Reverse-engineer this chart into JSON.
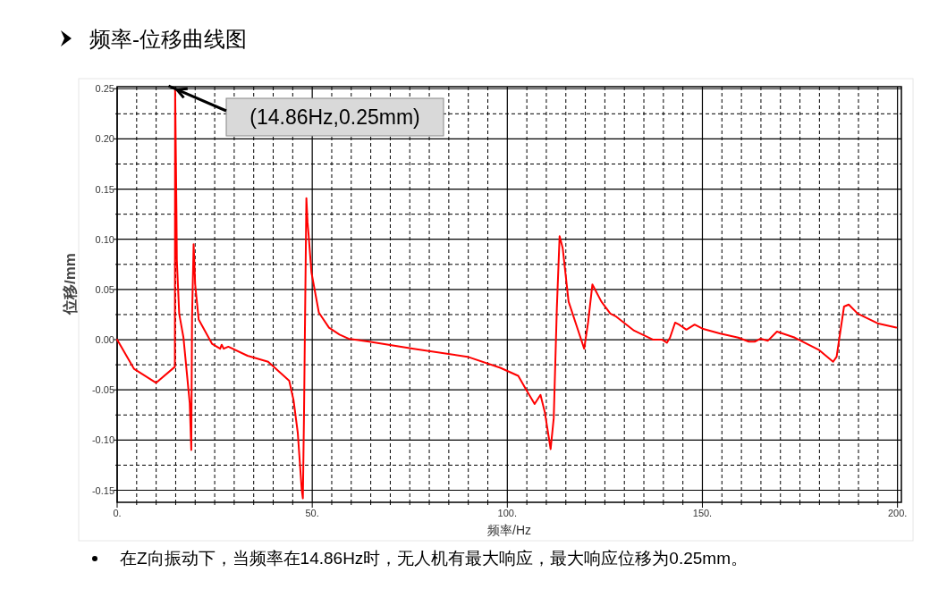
{
  "chart_data": {
    "type": "line",
    "title": "频率-位移曲线图",
    "xlabel": "频率/Hz",
    "ylabel": "位移/mm",
    "x": [
      0,
      4.3,
      10.0,
      14.8,
      14.86,
      15.2,
      15.3,
      15.9,
      17.0,
      18.6,
      19.0,
      19.2,
      19.6,
      20.0,
      20.9,
      24.3,
      26.4,
      26.8,
      27.3,
      28.5,
      33.4,
      38.7,
      44.1,
      45.2,
      46.3,
      47.3,
      47.6,
      47.9,
      48.5,
      48.8,
      49.1,
      49.8,
      51.7,
      54.3,
      57.0,
      59.3,
      64.6,
      76.0,
      89.8,
      98.2,
      102.8,
      105.0,
      107.0,
      108.5,
      109.6,
      111.1,
      111.9,
      112.7,
      113.4,
      114.2,
      115.7,
      118.0,
      119.7,
      120.7,
      121.8,
      124.1,
      126.4,
      127.9,
      132.5,
      137.4,
      139.7,
      140.9,
      141.7,
      143.0,
      144.0,
      145.9,
      148.0,
      150.0,
      154.6,
      159.2,
      161.9,
      163.4,
      164.9,
      166.8,
      169.1,
      173.7,
      179.8,
      183.5,
      184.4,
      186.3,
      187.5,
      189.8,
      195.1,
      199.7
    ],
    "series": [
      {
        "color": "#ff0000",
        "values": [
          0,
          -0.029,
          -0.043,
          -0.027,
          0.25,
          0.129,
          0.079,
          0.026,
          0.002,
          -0.063,
          -0.11,
          0.023,
          0.095,
          0.055,
          0.02,
          -0.004,
          -0.009,
          -0.005,
          -0.009,
          -0.007,
          -0.016,
          -0.022,
          -0.041,
          -0.06,
          -0.093,
          -0.149,
          -0.158,
          -0.072,
          0.141,
          0.117,
          0.103,
          0.067,
          0.027,
          0.012,
          0.005,
          0.001,
          -0.002,
          -0.009,
          -0.017,
          -0.028,
          -0.036,
          -0.051,
          -0.064,
          -0.055,
          -0.072,
          -0.109,
          -0.078,
          0.032,
          0.103,
          0.091,
          0.038,
          0.011,
          -0.009,
          0.017,
          0.055,
          0.038,
          0.026,
          0.023,
          0.009,
          0.0,
          0.0,
          -0.003,
          0.002,
          0.017,
          0.015,
          0.01,
          0.015,
          0.011,
          0.006,
          0.002,
          -0.002,
          -0.002,
          0.001,
          -0.001,
          0.008,
          0.002,
          -0.01,
          -0.022,
          -0.017,
          0.033,
          0.035,
          0.026,
          0.016,
          0.012
        ]
      }
    ],
    "xlim": [
      0,
      201
    ],
    "ylim": [
      -0.162,
      0.252
    ],
    "xticks": [
      {
        "value": 0,
        "label": "0."
      },
      {
        "value": 5,
        "label": null
      },
      {
        "value": 10,
        "label": null
      },
      {
        "value": 15,
        "label": null
      },
      {
        "value": 20,
        "label": null
      },
      {
        "value": 25,
        "label": null
      },
      {
        "value": 30,
        "label": null
      },
      {
        "value": 35,
        "label": null
      },
      {
        "value": 40,
        "label": null
      },
      {
        "value": 45,
        "label": null
      },
      {
        "value": 50,
        "label": "50."
      },
      {
        "value": 55,
        "label": null
      },
      {
        "value": 60,
        "label": null
      },
      {
        "value": 65,
        "label": null
      },
      {
        "value": 70,
        "label": null
      },
      {
        "value": 75,
        "label": null
      },
      {
        "value": 80,
        "label": null
      },
      {
        "value": 85,
        "label": null
      },
      {
        "value": 90,
        "label": null
      },
      {
        "value": 95,
        "label": null
      },
      {
        "value": 100,
        "label": "100."
      },
      {
        "value": 105,
        "label": null
      },
      {
        "value": 110,
        "label": null
      },
      {
        "value": 115,
        "label": null
      },
      {
        "value": 120,
        "label": null
      },
      {
        "value": 125,
        "label": null
      },
      {
        "value": 130,
        "label": null
      },
      {
        "value": 135,
        "label": null
      },
      {
        "value": 140,
        "label": null
      },
      {
        "value": 145,
        "label": null
      },
      {
        "value": 150,
        "label": "150."
      },
      {
        "value": 155,
        "label": null
      },
      {
        "value": 160,
        "label": null
      },
      {
        "value": 165,
        "label": null
      },
      {
        "value": 170,
        "label": null
      },
      {
        "value": 175,
        "label": null
      },
      {
        "value": 180,
        "label": null
      },
      {
        "value": 185,
        "label": null
      },
      {
        "value": 190,
        "label": null
      },
      {
        "value": 195,
        "label": null
      },
      {
        "value": 200,
        "label": "200."
      }
    ],
    "yticks": [
      {
        "value": -0.15,
        "label": "-0.15"
      },
      {
        "value": -0.125,
        "label": null
      },
      {
        "value": -0.1,
        "label": "-0.10"
      },
      {
        "value": -0.075,
        "label": null
      },
      {
        "value": -0.05,
        "label": "-0.05"
      },
      {
        "value": -0.025,
        "label": null
      },
      {
        "value": 0,
        "label": "0.00"
      },
      {
        "value": 0.025,
        "label": null
      },
      {
        "value": 0.05,
        "label": "0.05"
      },
      {
        "value": 0.075,
        "label": null
      },
      {
        "value": 0.1,
        "label": "0.10"
      },
      {
        "value": 0.125,
        "label": null
      },
      {
        "value": 0.15,
        "label": "0.15"
      },
      {
        "value": 0.175,
        "label": null
      },
      {
        "value": 0.2,
        "label": "0.20"
      },
      {
        "value": 0.225,
        "label": null
      },
      {
        "value": 0.25,
        "label": "0.25"
      }
    ],
    "grid": true,
    "annotations": [
      {
        "text": "(14.86Hz,0.25mm)",
        "x": 14.86,
        "y": 0.25
      },
      "在Z向振动下，当频率在14.86Hz时，无人机有最大响应，最大响应位移为0.25mm。"
    ]
  }
}
